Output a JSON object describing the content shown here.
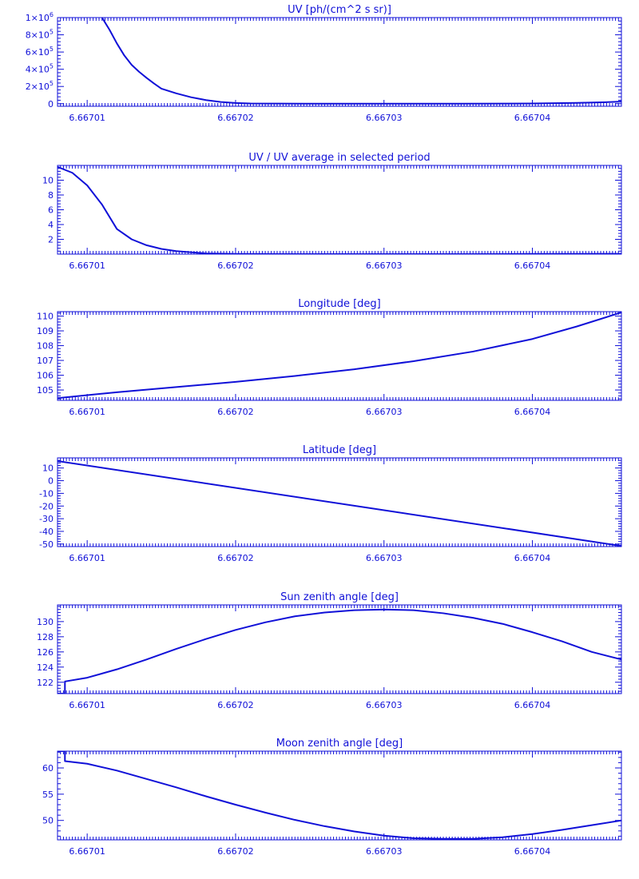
{
  "chart_data": [
    {
      "type": "line",
      "title": "UV [ph/(cm^2 s sr)]",
      "xlim": [
        6.667008,
        6.667046
      ],
      "ylim": [
        -30000,
        1000000
      ],
      "yticks": [
        {
          "v": 0,
          "label": "0"
        },
        {
          "v": 200000,
          "label": "2x10^5"
        },
        {
          "v": 400000,
          "label": "4x10^5"
        },
        {
          "v": 600000,
          "label": "6x10^5"
        },
        {
          "v": 800000,
          "label": "8x10^5"
        },
        {
          "v": 1000000,
          "label": "1x10^6"
        }
      ],
      "xticks": [
        {
          "v": 6.66701,
          "label": "6.66701"
        },
        {
          "v": 6.66702,
          "label": "6.66702"
        },
        {
          "v": 6.66703,
          "label": "6.66703"
        },
        {
          "v": 6.66704,
          "label": "6.66704"
        }
      ],
      "series": [
        {
          "x": [
            6.667011,
            6.6670115,
            6.667012,
            6.6670125,
            6.667013,
            6.6670135,
            6.667014,
            6.6670145,
            6.667015,
            6.667016,
            6.667017,
            6.667018,
            6.667019,
            6.66702,
            6.667021,
            6.667025,
            6.66703,
            6.667035,
            6.66704,
            6.667043,
            6.667045,
            6.667046
          ],
          "y": [
            1000000,
            860000,
            700000,
            560000,
            450000,
            370000,
            300000,
            235000,
            175000,
            120000,
            75000,
            42000,
            20000,
            8000,
            3000,
            0,
            0,
            0,
            2000,
            10000,
            18000,
            25000
          ]
        }
      ]
    },
    {
      "type": "line",
      "title": "UV / UV average in selected period",
      "xlim": [
        6.667008,
        6.667046
      ],
      "ylim": [
        0,
        12
      ],
      "yticks": [
        {
          "v": 2,
          "label": "2"
        },
        {
          "v": 4,
          "label": "4"
        },
        {
          "v": 6,
          "label": "6"
        },
        {
          "v": 8,
          "label": "8"
        },
        {
          "v": 10,
          "label": "10"
        }
      ],
      "xticks": [
        {
          "v": 6.66701,
          "label": "6.66701"
        },
        {
          "v": 6.66702,
          "label": "6.66702"
        },
        {
          "v": 6.66703,
          "label": "6.66703"
        },
        {
          "v": 6.66704,
          "label": "6.66704"
        }
      ],
      "series": [
        {
          "x": [
            6.667008,
            6.667009,
            6.66701,
            6.667011,
            6.667012,
            6.667013,
            6.667014,
            6.667015,
            6.667016,
            6.667017,
            6.667018,
            6.66702,
            6.667025,
            6.66703,
            6.667035,
            6.66704,
            6.667046
          ],
          "y": [
            11.8,
            11.0,
            9.3,
            6.7,
            3.4,
            2.0,
            1.2,
            0.7,
            0.4,
            0.25,
            0.1,
            0.03,
            0.0,
            0.0,
            0.0,
            0.02,
            0.04
          ]
        }
      ]
    },
    {
      "type": "line",
      "title": "Longitude [deg]",
      "xlim": [
        6.667008,
        6.667046
      ],
      "ylim": [
        104.3,
        110.3
      ],
      "yticks": [
        {
          "v": 105,
          "label": "105"
        },
        {
          "v": 106,
          "label": "106"
        },
        {
          "v": 107,
          "label": "107"
        },
        {
          "v": 108,
          "label": "108"
        },
        {
          "v": 109,
          "label": "109"
        },
        {
          "v": 110,
          "label": "110"
        }
      ],
      "xticks": [
        {
          "v": 6.66701,
          "label": "6.66701"
        },
        {
          "v": 6.66702,
          "label": "6.66702"
        },
        {
          "v": 6.66703,
          "label": "6.66703"
        },
        {
          "v": 6.66704,
          "label": "6.66704"
        }
      ],
      "series": [
        {
          "x": [
            6.667008,
            6.667012,
            6.667016,
            6.66702,
            6.667024,
            6.667028,
            6.667032,
            6.667036,
            6.66704,
            6.667043,
            6.667046
          ],
          "y": [
            104.45,
            104.85,
            105.2,
            105.55,
            105.95,
            106.4,
            106.95,
            107.6,
            108.45,
            109.3,
            110.25
          ]
        }
      ]
    },
    {
      "type": "line",
      "title": "Latitude [deg]",
      "xlim": [
        6.667008,
        6.667046
      ],
      "ylim": [
        -52,
        18
      ],
      "yticks": [
        {
          "v": -50,
          "label": "-50"
        },
        {
          "v": -40,
          "label": "-40"
        },
        {
          "v": -30,
          "label": "-30"
        },
        {
          "v": -20,
          "label": "-20"
        },
        {
          "v": -10,
          "label": "-10"
        },
        {
          "v": 0,
          "label": "0"
        },
        {
          "v": 10,
          "label": "10"
        }
      ],
      "xticks": [
        {
          "v": 6.66701,
          "label": "6.66701"
        },
        {
          "v": 6.66702,
          "label": "6.66702"
        },
        {
          "v": 6.66703,
          "label": "6.66703"
        },
        {
          "v": 6.66704,
          "label": "6.66704"
        }
      ],
      "series": [
        {
          "x": [
            6.667008,
            6.667046
          ],
          "y": [
            15.5,
            -51.5
          ]
        }
      ]
    },
    {
      "type": "line",
      "title": "Sun zenith angle [deg]",
      "xlim": [
        6.667008,
        6.667046
      ],
      "ylim": [
        120.5,
        132.2
      ],
      "yticks": [
        {
          "v": 122,
          "label": "122"
        },
        {
          "v": 124,
          "label": "124"
        },
        {
          "v": 126,
          "label": "126"
        },
        {
          "v": 128,
          "label": "128"
        },
        {
          "v": 130,
          "label": "130"
        }
      ],
      "xticks": [
        {
          "v": 6.66701,
          "label": "6.66701"
        },
        {
          "v": 6.66702,
          "label": "6.66702"
        },
        {
          "v": 6.66703,
          "label": "6.66703"
        },
        {
          "v": 6.66704,
          "label": "6.66704"
        }
      ],
      "series": [
        {
          "x": [
            6.667008,
            6.667008,
            6.6670085,
            6.6670085,
            6.66701,
            6.667012,
            6.667014,
            6.667016,
            6.667018,
            6.66702,
            6.667022,
            6.667024,
            6.667026,
            6.667028,
            6.66703,
            6.667032,
            6.667034,
            6.667036,
            6.667038,
            6.66704,
            6.667042,
            6.667044,
            6.667046
          ],
          "y": [
            120.5,
            120.5,
            120.5,
            122.1,
            122.6,
            123.7,
            125.0,
            126.4,
            127.7,
            128.9,
            129.9,
            130.7,
            131.2,
            131.5,
            131.6,
            131.5,
            131.1,
            130.5,
            129.7,
            128.6,
            127.4,
            126.0,
            125.0
          ]
        }
      ]
    },
    {
      "type": "line",
      "title": "Moon zenith angle [deg]",
      "xlim": [
        6.667008,
        6.667046
      ],
      "ylim": [
        46.3,
        63.2
      ],
      "yticks": [
        {
          "v": 50,
          "label": "50"
        },
        {
          "v": 55,
          "label": "55"
        },
        {
          "v": 60,
          "label": "60"
        }
      ],
      "xticks": [
        {
          "v": 6.66701,
          "label": "6.66701"
        },
        {
          "v": 6.66702,
          "label": "6.66702"
        },
        {
          "v": 6.66703,
          "label": "6.66703"
        },
        {
          "v": 6.66704,
          "label": "6.66704"
        }
      ],
      "series": [
        {
          "x": [
            6.667008,
            6.6670085,
            6.6670085,
            6.66701,
            6.667012,
            6.667014,
            6.667016,
            6.667018,
            6.66702,
            6.667022,
            6.667024,
            6.667026,
            6.667028,
            6.66703,
            6.667032,
            6.667034,
            6.667036,
            6.667038,
            6.66704,
            6.667042,
            6.667044,
            6.667046
          ],
          "y": [
            63.2,
            63.2,
            61.3,
            60.8,
            59.5,
            57.9,
            56.3,
            54.6,
            53.0,
            51.5,
            50.1,
            48.9,
            47.9,
            47.1,
            46.6,
            46.5,
            46.5,
            46.8,
            47.4,
            48.2,
            49.1,
            50.0
          ]
        }
      ]
    }
  ]
}
